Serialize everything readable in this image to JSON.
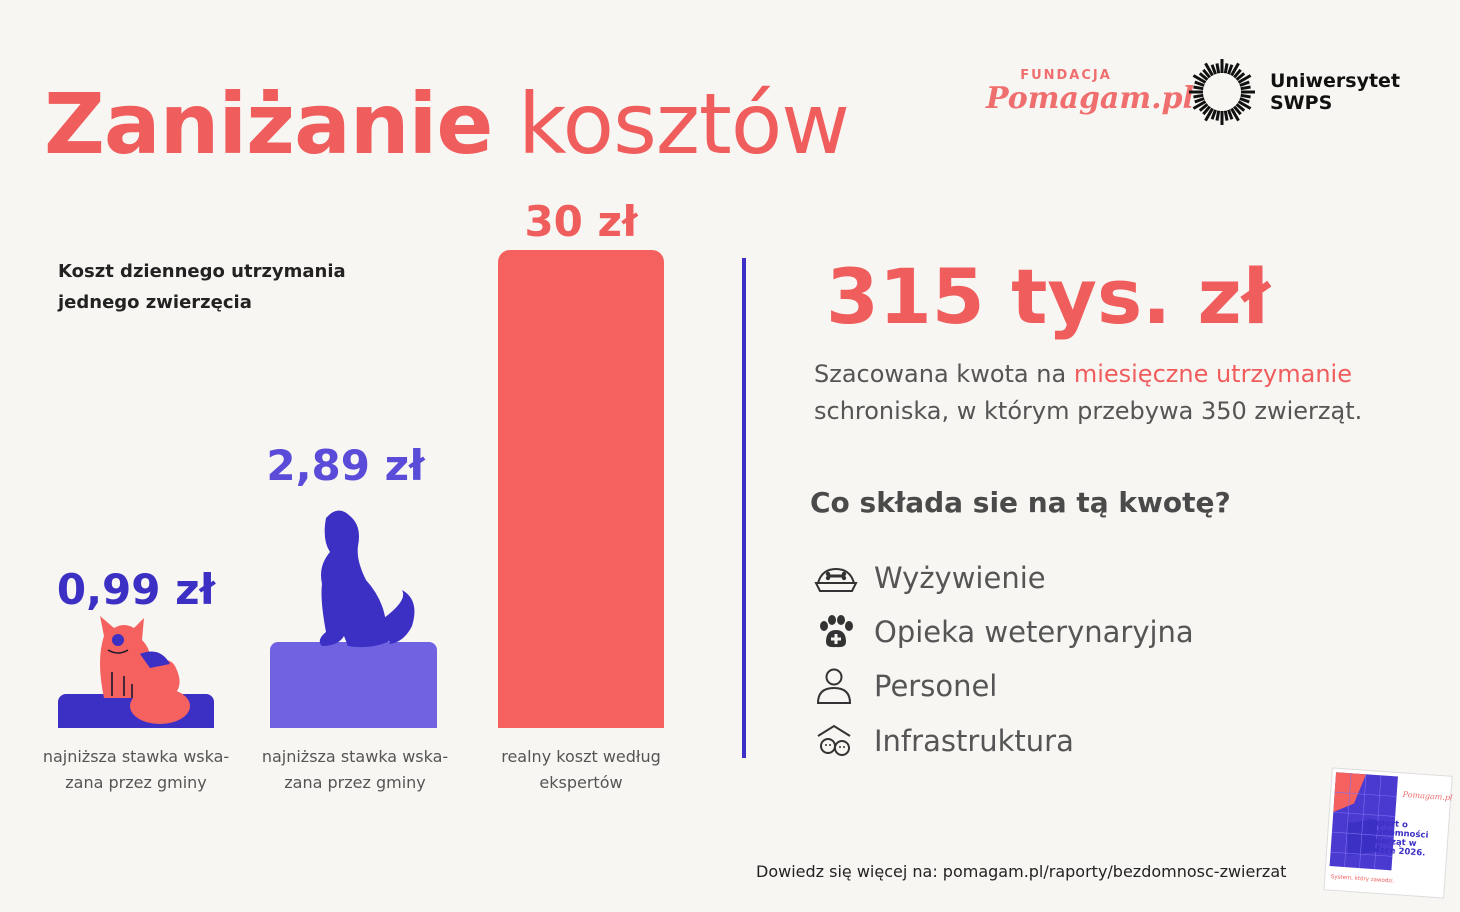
{
  "title": {
    "bold": "Zaniżanie",
    "light": "kosztów"
  },
  "logos": {
    "fundacja_small": "FUNDACJA",
    "fundacja_big": "Pomagam.pl",
    "university_line1": "Uniwersytet",
    "university_line2": "SWPS"
  },
  "chart_label_line1": "Koszt dziennego utrzymania",
  "chart_label_line2": "jednego zwierzęcia",
  "chart_data": {
    "type": "bar",
    "title": "Koszt dziennego utrzymania jednego zwierzęcia",
    "categories": [
      "najniższa stawka wska-zana przez gminy",
      "najniższa stawka wska-zana przez gminy",
      "realny koszt według ekspertów"
    ],
    "values": [
      0.99,
      2.89,
      30
    ],
    "value_labels": [
      "0,99 zł",
      "2,89 zł",
      "30 zł"
    ],
    "unit": "zł",
    "colors": [
      "#3b2fc4",
      "#7062e0",
      "#f4615f"
    ],
    "label_colors": [
      "#3b2fc4",
      "#5a4bd8",
      "#ef5d5d"
    ],
    "ylim": [
      0,
      30
    ],
    "grid": false
  },
  "captions": [
    {
      "line1": "najniższa stawka wska-",
      "line2": "zana przez gminy"
    },
    {
      "line1": "najniższa stawka wska-",
      "line2": "zana przez gminy"
    },
    {
      "line1": "realny koszt według",
      "line2": "ekspertów"
    }
  ],
  "right": {
    "amount": "315 tys. zł",
    "desc_pre": "Szacowana kwota na ",
    "desc_highlight": "miesięczne utrzymanie",
    "desc_post": "schroniska, w którym przebywa 350 zwierząt.",
    "question": "Co składa sie na tą kwotę?",
    "items": [
      {
        "label": "Wyżywienie",
        "icon": "food-bowl-icon"
      },
      {
        "label": "Opieka weterynaryjna",
        "icon": "paw-medical-icon"
      },
      {
        "label": "Personel",
        "icon": "person-icon"
      },
      {
        "label": "Infrastruktura",
        "icon": "shelter-icon"
      }
    ]
  },
  "footer": {
    "link": "Dowiedz się więcej na: pomagam.pl/raporty/bezdomnosc-zwierzat"
  },
  "report": {
    "brand": "Pomagam.pl",
    "title": "Raport o bezdomności zwierząt w Polsce 2026.",
    "tagline": "System, który zawodzi."
  },
  "colors": {
    "accent": "#ef5d5d",
    "purple": "#3b2fc4",
    "background": "#f8f6f3"
  }
}
